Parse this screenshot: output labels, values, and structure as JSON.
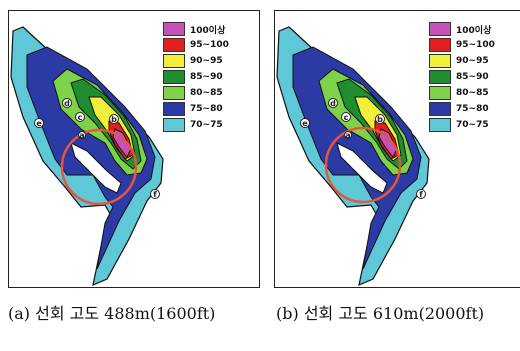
{
  "legend": [
    {
      "label": "100이상",
      "color": "#c552b8"
    },
    {
      "label": "95~100",
      "color": "#e41f1f"
    },
    {
      "label": "90~95",
      "color": "#f2ef3a"
    },
    {
      "label": "85~90",
      "color": "#1f8e2e"
    },
    {
      "label": "80~85",
      "color": "#7ed24a"
    },
    {
      "label": "75~80",
      "color": "#2c3aa6"
    },
    {
      "label": "70~75",
      "color": "#5ec8d6"
    }
  ],
  "site_labels": [
    "a",
    "b",
    "c",
    "d",
    "e",
    "f"
  ],
  "panels": [
    {
      "caption": "(a) 선회 고도 488m(1600ft)"
    },
    {
      "caption": "(b) 선회 고도 610m(2000ft)"
    }
  ]
}
